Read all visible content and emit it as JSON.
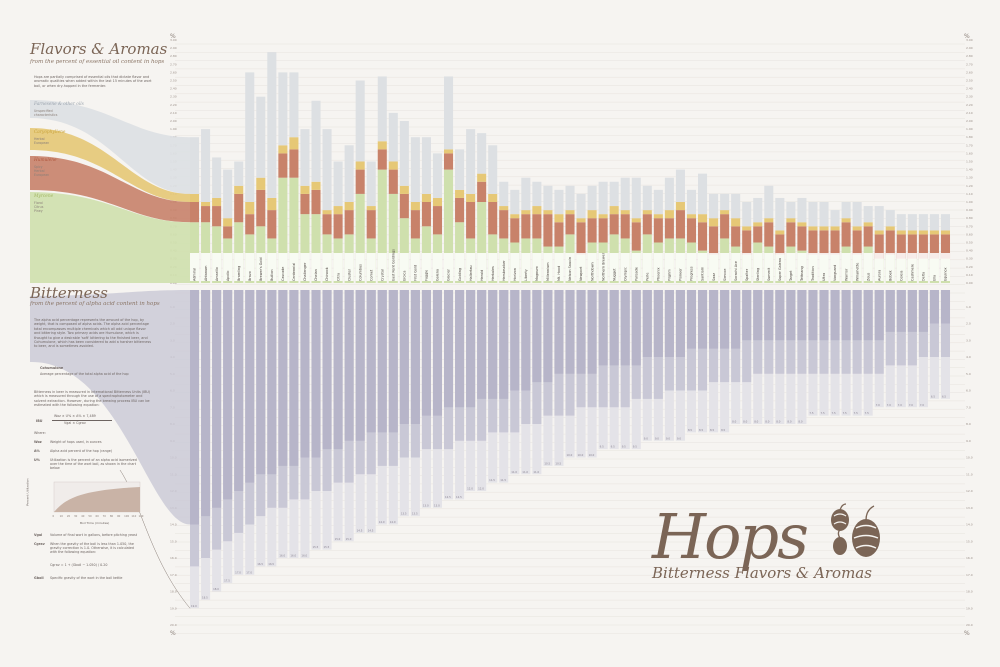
{
  "poster": {
    "flavors_title": "Flavors & Aromas",
    "flavors_subtitle": "from the percent of essential oil content in hops",
    "flavors_intro": "Hops are partially comprised of essential oils that dictate flavor and aromatic qualities when added within the last 15 minutes of the wort boil, or when dry-hopped in the fermenter.",
    "bitterness_title": "Bitterness",
    "bitterness_subtitle": "from the percent of alpha acid content in hops",
    "bitterness_intro": "The alpha acid percentage represents the amount of the hop, by weight, that is composed of alpha acids. The alpha acid percentage total encompasses multiple chemicals which all add unique flavor and bittering style. Two primary acids are Humulone, which is thought to give a desirable 'soft' bittering to the finished beer, and Cohumulone, which has been considered to add a harsher bitterness to beer, and is sometimes avoided.",
    "cohumulone_label": "Cohumulone",
    "cohumulone_desc": "Average percentage of the total alpha acid of the hop",
    "ibu_intro": "Bitterness in beer is measured in International Bitterness Units (IBU) which is measured through the use of a spectrophotometer and solvent extraction. However, during the brewing process IBU can be estimated with the following equation:",
    "ibu_label": "IBU",
    "ibu_formula_num": "Woz × U% × A% × 7,489",
    "ibu_formula_den": "Vgal × Cgrav",
    "where": "Where:",
    "defs": [
      {
        "sym": "Woz",
        "text": "Weight of hops used, in ounces"
      },
      {
        "sym": "A%",
        "text": "Alpha acid percent of the hop (range)"
      },
      {
        "sym": "U%",
        "text": "Utilization is the percent of an alpha acid isomerized over the time of the wort boil, as shown in the chart below"
      }
    ],
    "util_chart_ylabel": "Percent Utilization",
    "util_chart_xlabel": "Boil Time (minutes)",
    "util_ticks_x": [
      "0",
      "10",
      "20",
      "30",
      "40",
      "50",
      "60",
      "70",
      "80",
      "90",
      "100",
      "110",
      "120"
    ],
    "defs2": [
      {
        "sym": "Vgal",
        "text": "Volume of final wort in gallons, before pitching yeast"
      },
      {
        "sym": "Cgrav",
        "text": "When the gravity of the boil is less than 1.050, the gravity correction is 1.0. Otherwise, it is calculated with the following equation:"
      },
      {
        "sym": "Gboil",
        "text": "Specific gravity of the wort in the boil kettle"
      }
    ],
    "cgrav_formula": "Cgrav = 1 + (Gboil − 1.050) / 0.20",
    "brand_title": "Hops",
    "brand_sub": "Bitterness  Flavors & Aromas",
    "pct_symbol": "%"
  },
  "legend": [
    {
      "name": "Farnesene & other oils",
      "desc": "Unspecified\ncharacteristics",
      "color": "#dde0e3",
      "label_color": "#9aa3ad"
    },
    {
      "name": "Caryophyllene",
      "desc": "Herbal\nEuropean",
      "color": "#e6c876",
      "label_color": "#c9a33a"
    },
    {
      "name": "Humulene",
      "desc": "Spicy\nHerbal\nEuropean",
      "color": "#c8826a",
      "label_color": "#b0573d"
    },
    {
      "name": "Myrcene",
      "desc": "Floral\nCitrus\nPiney",
      "color": "#cfe0ad",
      "label_color": "#a1b560"
    }
  ],
  "colors": {
    "other": "#dde0e3",
    "caryophyllene": "#e6c876",
    "humulene": "#c8826a",
    "myrcene": "#cfe0ad",
    "alpha_max": "#c9c8d6",
    "alpha_min": "#b7b5c9",
    "cohumulone": "#e4e3e8",
    "text": "#7b6556"
  },
  "chart_data": {
    "type": "bar",
    "flavor_axis": {
      "ylim": [
        0,
        3.0
      ],
      "ticks": [
        "0.00",
        "0.10",
        "0.20",
        "0.30",
        "0.40",
        "0.50",
        "0.60",
        "0.70",
        "0.80",
        "0.90",
        "1.00",
        "1.10",
        "1.20",
        "1.30",
        "1.40",
        "1.50",
        "1.60",
        "1.70",
        "1.80",
        "1.90",
        "2.00",
        "2.10",
        "2.20",
        "2.30",
        "2.40",
        "2.50",
        "2.60",
        "2.70",
        "2.80",
        "2.90",
        "3.00"
      ]
    },
    "alpha_axis": {
      "ylim": [
        0,
        20
      ],
      "ticks": [
        "1.0",
        "2.0",
        "3.0",
        "4.0",
        "5.0",
        "6.0",
        "7.0",
        "8.0",
        "9.0",
        "10.0",
        "11.0",
        "12.0",
        "13.0",
        "14.0",
        "15.0",
        "16.0",
        "17.0",
        "18.0",
        "19.0",
        "20.0"
      ]
    },
    "categories": [
      "Admiral",
      "Ahtanum",
      "Amarillo",
      "Apollo",
      "Bramling",
      "Bravo",
      "Brewer's Gold",
      "Bullion",
      "Cascade",
      "Centennial",
      "Challenger",
      "Chelan",
      "Chinook",
      "Citra",
      "Cluster",
      "Columbus",
      "Comet",
      "Crystal",
      "East Kent Goldings",
      "Eroica",
      "First Gold",
      "Fuggle",
      "Galena",
      "Glacier",
      "Golding",
      "Hallertau",
      "Herald",
      "Herkules",
      "Hersbrucker",
      "Horizon",
      "Liberty",
      "Magnum",
      "Millennium",
      "Mt. Hood",
      "Nelson Sauvin",
      "Newport",
      "Northdown",
      "Northern Brewer",
      "Nugget",
      "Olympic",
      "Palisade",
      "Perle",
      "Phoenix",
      "Pilgrim",
      "Pioneer",
      "Progress",
      "Santiam",
      "Saaz",
      "Simcoe",
      "Sorachi Ace",
      "Spalter",
      "Sterling",
      "Summit",
      "Super Galena",
      "Target",
      "Tettnang",
      "Tradition",
      "Ultra",
      "Vanguard",
      "Warrior",
      "Willamette",
      "Zeus",
      "Aurora",
      "Bobek",
      "Celeia",
      "Cashmere",
      "Delta",
      "Ella",
      "Equinox"
    ],
    "series": [
      {
        "name": "Myrcene",
        "values": [
          0.75,
          0.75,
          0.7,
          0.55,
          0.75,
          0.6,
          0.7,
          0.55,
          1.3,
          1.3,
          0.85,
          0.85,
          0.6,
          0.55,
          0.6,
          1.1,
          0.55,
          1.4,
          1.1,
          0.8,
          0.55,
          0.7,
          0.6,
          1.4,
          0.75,
          0.55,
          1.0,
          0.6,
          0.55,
          0.5,
          0.55,
          0.55,
          0.45,
          0.45,
          0.6,
          0.35,
          0.5,
          0.5,
          0.6,
          0.55,
          0.4,
          0.6,
          0.5,
          0.55,
          0.55,
          0.5,
          0.4,
          0.35,
          0.55,
          0.45,
          0.35,
          0.5,
          0.45,
          0.35,
          0.45,
          0.4,
          0.35,
          0.35,
          0.35,
          0.45,
          0.35,
          0.45,
          0.3,
          0.35,
          0.3,
          0.3,
          0.3,
          0.3,
          0.3
        ]
      },
      {
        "name": "Humulene",
        "values": [
          0.25,
          0.2,
          0.25,
          0.15,
          0.35,
          0.25,
          0.45,
          0.35,
          0.3,
          0.35,
          0.25,
          0.3,
          0.25,
          0.3,
          0.3,
          0.3,
          0.35,
          0.25,
          0.3,
          0.3,
          0.35,
          0.3,
          0.35,
          0.2,
          0.3,
          0.45,
          0.25,
          0.4,
          0.35,
          0.3,
          0.3,
          0.3,
          0.4,
          0.3,
          0.25,
          0.4,
          0.3,
          0.3,
          0.25,
          0.3,
          0.35,
          0.25,
          0.3,
          0.25,
          0.35,
          0.3,
          0.35,
          0.35,
          0.3,
          0.25,
          0.3,
          0.2,
          0.3,
          0.25,
          0.3,
          0.3,
          0.3,
          0.3,
          0.3,
          0.3,
          0.3,
          0.25,
          0.3,
          0.3,
          0.3,
          0.3,
          0.3,
          0.3,
          0.3
        ]
      },
      {
        "name": "Caryophyllene",
        "values": [
          0.1,
          0.05,
          0.1,
          0.1,
          0.1,
          0.15,
          0.15,
          0.15,
          0.1,
          0.15,
          0.1,
          0.1,
          0.05,
          0.1,
          0.1,
          0.1,
          0.05,
          0.1,
          0.1,
          0.1,
          0.1,
          0.1,
          0.1,
          0.05,
          0.1,
          0.1,
          0.1,
          0.1,
          0.05,
          0.05,
          0.05,
          0.1,
          0.05,
          0.1,
          0.05,
          0.05,
          0.1,
          0.05,
          0.1,
          0.05,
          0.05,
          0.05,
          0.05,
          0.1,
          0.1,
          0.05,
          0.1,
          0.1,
          0.05,
          0.1,
          0.05,
          0.05,
          0.05,
          0.05,
          0.05,
          0.05,
          0.05,
          0.05,
          0.05,
          0.05,
          0.05,
          0.05,
          0.05,
          0.05,
          0.05,
          0.05,
          0.05,
          0.05,
          0.05
        ]
      },
      {
        "name": "Farnesene & other oils",
        "values": [
          0.7,
          0.9,
          0.5,
          0.6,
          0.3,
          1.6,
          1.0,
          1.8,
          0.9,
          0.8,
          0.7,
          1.0,
          1.0,
          0.55,
          0.7,
          1.0,
          0.55,
          0.8,
          0.6,
          0.8,
          0.8,
          0.7,
          0.55,
          0.9,
          0.5,
          0.8,
          0.5,
          0.6,
          0.3,
          0.3,
          0.4,
          0.3,
          0.3,
          0.3,
          0.3,
          0.3,
          0.3,
          0.4,
          0.3,
          0.4,
          0.5,
          0.3,
          0.3,
          0.4,
          0.4,
          0.3,
          0.5,
          0.3,
          0.2,
          0.3,
          0.3,
          0.3,
          0.4,
          0.4,
          0.2,
          0.3,
          0.3,
          0.3,
          0.2,
          0.2,
          0.3,
          0.2,
          0.3,
          0.2,
          0.2,
          0.2,
          0.2,
          0.2,
          0.2
        ]
      },
      {
        "name": "Alpha acid max",
        "values": [
          16.5,
          16.0,
          15.5,
          15.0,
          14.5,
          14.0,
          13.5,
          13.0,
          13.0,
          12.5,
          12.5,
          12.0,
          12.0,
          11.5,
          11.5,
          11.0,
          11.0,
          10.5,
          10.5,
          10.0,
          10.0,
          9.5,
          9.5,
          9.5,
          9.0,
          9.0,
          9.0,
          8.5,
          8.5,
          8.5,
          8.0,
          8.0,
          7.5,
          7.5,
          7.5,
          7.0,
          7.0,
          7.0,
          7.0,
          7.0,
          6.5,
          6.5,
          6.5,
          6.0,
          6.0,
          6.0,
          6.0,
          5.5,
          5.5,
          5.5,
          5.5,
          5.0,
          5.0,
          5.0,
          5.0,
          5.0,
          5.0,
          5.0,
          5.0,
          5.0,
          5.0,
          5.0,
          5.0,
          4.5,
          4.5,
          4.5,
          4.0,
          4.0,
          4.0
        ]
      },
      {
        "name": "Alpha acid min",
        "values": [
          14.0,
          13.5,
          13.0,
          12.5,
          12.0,
          11.5,
          11.0,
          11.0,
          10.5,
          10.5,
          10.0,
          10.0,
          9.5,
          9.5,
          9.0,
          9.0,
          8.5,
          8.5,
          8.5,
          8.0,
          8.0,
          7.5,
          7.5,
          7.0,
          7.0,
          7.0,
          6.5,
          6.5,
          6.5,
          6.0,
          6.0,
          5.5,
          5.5,
          5.0,
          5.0,
          5.0,
          5.0,
          4.5,
          4.5,
          4.5,
          4.5,
          4.0,
          4.0,
          4.0,
          4.0,
          3.5,
          3.5,
          3.5,
          3.5,
          3.5,
          3.0,
          3.0,
          3.0,
          3.0,
          3.0,
          3.0,
          3.0,
          3.0,
          3.0,
          3.0,
          3.0,
          3.0,
          3.0,
          2.5,
          2.5,
          2.5,
          2.5,
          2.0,
          2.0
        ]
      },
      {
        "name": "Cohumulone",
        "values": [
          19.0,
          18.5,
          18.0,
          17.5,
          17.0,
          17.0,
          16.5,
          16.5,
          16.0,
          16.0,
          16.0,
          15.5,
          15.5,
          15.0,
          15.0,
          14.5,
          14.5,
          14.0,
          14.0,
          13.5,
          13.5,
          13.0,
          13.0,
          12.5,
          12.5,
          12.0,
          12.0,
          11.5,
          11.5,
          11.0,
          11.0,
          11.0,
          10.5,
          10.5,
          10.0,
          10.0,
          10.0,
          9.5,
          9.5,
          9.5,
          9.5,
          9.0,
          9.0,
          9.0,
          9.0,
          8.5,
          8.5,
          8.5,
          8.5,
          8.0,
          8.0,
          8.0,
          8.0,
          8.0,
          8.0,
          8.0,
          7.5,
          7.5,
          7.5,
          7.5,
          7.5,
          7.5,
          7.0,
          7.0,
          7.0,
          7.0,
          7.0,
          6.5,
          6.5
        ]
      }
    ]
  }
}
